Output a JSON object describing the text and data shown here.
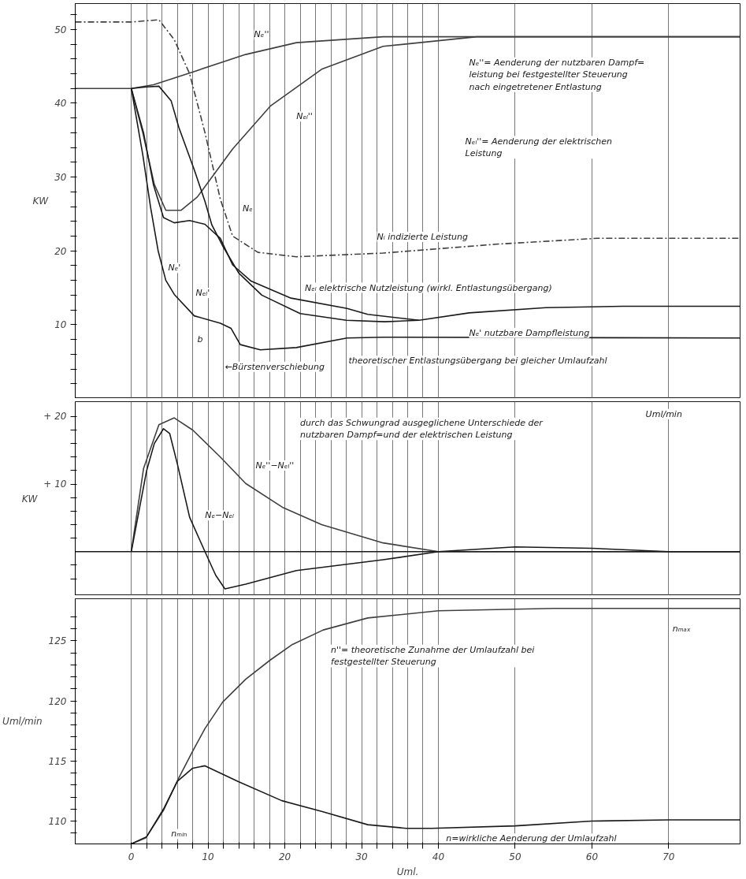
{
  "chart_data": [
    {
      "type": "line",
      "ylabel": "KW",
      "xlim": [
        -7.3,
        79.3
      ],
      "ylim": [
        0,
        53.5
      ],
      "grid": "x",
      "tick_labels": "y",
      "xticks": [
        0,
        {
          "value": 2,
          "label": null
        },
        {
          "value": 4,
          "label": null
        },
        {
          "value": 6,
          "label": null
        },
        {
          "value": 8,
          "label": null
        },
        10,
        {
          "value": 12,
          "label": null
        },
        {
          "value": 14,
          "label": null
        },
        {
          "value": 16,
          "label": null
        },
        {
          "value": 18,
          "label": null
        },
        20,
        {
          "value": 22,
          "label": null
        },
        {
          "value": 24,
          "label": null
        },
        {
          "value": 26,
          "label": null
        },
        {
          "value": 28,
          "label": null
        },
        30,
        {
          "value": 32,
          "label": null
        },
        {
          "value": 34,
          "label": null
        },
        {
          "value": 36,
          "label": null
        },
        {
          "value": 38,
          "label": null
        },
        40,
        50,
        60,
        70
      ],
      "yticks": [
        {
          "value": 2,
          "label": null
        },
        {
          "value": 4,
          "label": null
        },
        {
          "value": 6,
          "label": null
        },
        {
          "value": 8,
          "label": null
        },
        10,
        {
          "value": 12,
          "label": null
        },
        {
          "value": 14,
          "label": null
        },
        {
          "value": 16,
          "label": null
        },
        {
          "value": 18,
          "label": null
        },
        20,
        {
          "value": 22,
          "label": null
        },
        {
          "value": 24,
          "label": null
        },
        {
          "value": 26,
          "label": null
        },
        {
          "value": 28,
          "label": null
        },
        30,
        {
          "value": 32,
          "label": null
        },
        {
          "value": 34,
          "label": null
        },
        {
          "value": 36,
          "label": null
        },
        {
          "value": 38,
          "label": null
        },
        40,
        {
          "value": 42,
          "label": null
        },
        {
          "value": 44,
          "label": null
        },
        {
          "value": 46,
          "label": null
        },
        {
          "value": 48,
          "label": null
        },
        50,
        {
          "value": 52,
          "label": null
        }
      ],
      "series": [
        {
          "color": "#404040",
          "x": [
            -7.3,
            0,
            2.9,
            8.2,
            14.9,
            21.5,
            32.8,
            40,
            79.3
          ],
          "values": [
            42,
            42,
            42.5,
            44.3,
            46.6,
            48.2,
            49,
            49,
            49
          ]
        },
        {
          "color": "#404040",
          "x": [
            0,
            1.5,
            3,
            4.5,
            6.5,
            8.6,
            13.2,
            18.1,
            24.8,
            32.8,
            45,
            79.3
          ],
          "values": [
            42,
            36,
            29,
            25.5,
            25.5,
            27.3,
            33.8,
            39.6,
            44.6,
            47.7,
            49,
            49
          ]
        },
        {
          "color": "#1a1a1a",
          "x": [
            0,
            2,
            3.6,
            5.2,
            6.2,
            8.2,
            9.6,
            10.5,
            12,
            14,
            17,
            22,
            28,
            33,
            37.5
          ],
          "values": [
            42,
            42.2,
            42.3,
            40.3,
            36.7,
            31,
            26.7,
            23.5,
            20.5,
            17,
            14,
            11.5,
            10.6,
            10.4,
            10.6
          ]
        },
        {
          "color": "#1a1a1a",
          "x": [
            0,
            1.6,
            2.9,
            4.2,
            5.6,
            7.6,
            9.6,
            11.6,
            13.2,
            15.6,
            20.8,
            28.1,
            30.8,
            37.5,
            44,
            54,
            64,
            79.3
          ],
          "values": [
            42,
            36,
            28.9,
            24.5,
            23.8,
            24.1,
            23.6,
            21.7,
            18.1,
            15.9,
            13.6,
            12.2,
            11.4,
            10.6,
            11.6,
            12.3,
            12.5,
            12.5
          ]
        },
        {
          "color": "#1a1a1a",
          "x": [
            0,
            1.5,
            2.5,
            3.5,
            4.5,
            5.6,
            8.2,
            11.6,
            13,
            14.2,
            16.8,
            21.5,
            28.1,
            32.8,
            79.3
          ],
          "values": [
            42,
            33,
            26,
            20,
            16,
            14.1,
            11.2,
            10.2,
            9.5,
            7.3,
            6.6,
            6.9,
            8.2,
            8.3,
            8.2
          ]
        },
        {
          "color": "#404040",
          "line_style": "dashed",
          "x": [
            -7.3,
            0,
            3.6,
            5.6,
            7.6,
            9.6,
            11.6,
            13.2,
            16.5,
            21.5,
            32.8,
            47.5,
            60.7,
            79.3
          ],
          "values": [
            51,
            51,
            51.3,
            48.6,
            44,
            36,
            27,
            22,
            19.8,
            19.2,
            19.7,
            20.9,
            21.7,
            21.7
          ]
        }
      ],
      "annotations": [
        "Nₑ''",
        "Nₑₗ''",
        "Nₑ",
        "Nₑ'",
        "Nₑₗ'",
        "b",
        "←Bürstenverschiebung",
        "Nᵢ  indizierte Leistung",
        "Nₑₗ elektrische Nutzleistung (wirkl. Entlastungsübergang)",
        "Nₑ' nutzbare Dampfleistung",
        "theoretischer Entlastungsübergang bei gleicher Umlaufzahl",
        "Nₑ''= Aenderung der nutzbaren Dampf=\n       leistung bei festgestellter Steuerung\n       nach eingetretener Entlastung",
        "Nₑₗ''= Aenderung der elektrischen\n              Leistung"
      ]
    },
    {
      "type": "line",
      "ylabel": "KW",
      "xlim": [
        -7.3,
        79.3
      ],
      "ylim": [
        -6.5,
        22.2
      ],
      "grid": "x",
      "tick_labels": "y",
      "xticks": [
        0,
        {
          "value": 2,
          "label": null
        },
        {
          "value": 4,
          "label": null
        },
        {
          "value": 6,
          "label": null
        },
        {
          "value": 8,
          "label": null
        },
        10,
        {
          "value": 12,
          "label": null
        },
        {
          "value": 14,
          "label": null
        },
        {
          "value": 16,
          "label": null
        },
        {
          "value": 18,
          "label": null
        },
        20,
        {
          "value": 22,
          "label": null
        },
        {
          "value": 24,
          "label": null
        },
        {
          "value": 26,
          "label": null
        },
        {
          "value": 28,
          "label": null
        },
        30,
        {
          "value": 32,
          "label": null
        },
        {
          "value": 34,
          "label": null
        },
        {
          "value": 36,
          "label": null
        },
        {
          "value": 38,
          "label": null
        },
        40,
        50,
        60,
        70
      ],
      "yticks": [
        {
          "value": -4,
          "label": null
        },
        {
          "value": -2,
          "label": null
        },
        {
          "value": 2,
          "label": null
        },
        {
          "value": 4,
          "label": null
        },
        {
          "value": 6,
          "label": null
        },
        {
          "value": 8,
          "label": null
        },
        {
          "value": 10,
          "label": "+ 10"
        },
        {
          "value": 12,
          "label": null
        },
        {
          "value": 14,
          "label": null
        },
        {
          "value": 16,
          "label": null
        },
        {
          "value": 18,
          "label": null
        },
        {
          "value": 20,
          "label": "+ 20"
        }
      ],
      "ref_lines": [
        {
          "axis": "y",
          "value": 0,
          "color": "#1a1a1a"
        }
      ],
      "series": [
        {
          "color": "#404040",
          "x": [
            0,
            1.6,
            3.6,
            5.6,
            8,
            11.6,
            14.9,
            19.8,
            24.8,
            32.8,
            40,
            79.3
          ],
          "values": [
            0,
            12.3,
            18.8,
            19.8,
            18,
            14,
            10.1,
            6.5,
            4,
            1.3,
            0,
            0
          ]
        },
        {
          "color": "#1a1a1a",
          "x": [
            0,
            1,
            2,
            3,
            4.2,
            5,
            6,
            7.6,
            9.6,
            11,
            12.2,
            14.9,
            21.5,
            32.8,
            40,
            50,
            60,
            70,
            79.3
          ],
          "values": [
            0,
            6,
            12,
            16,
            18.2,
            17.5,
            13,
            5.1,
            0,
            -3.5,
            -5.5,
            -4.8,
            -2.8,
            -1.2,
            0,
            0.7,
            0.5,
            0,
            0
          ]
        }
      ],
      "annotations": [
        "Nₑ''−Nₑₗ''",
        "Nₑ−Nₑₗ",
        "Uml/min",
        "durch das Schwungrad  ausgeglichene Unterschiede der\n         nutzbaren Dampf=und der elektrischen Leistung"
      ]
    },
    {
      "type": "line",
      "ylabel": "Uml/min",
      "xlabel": "Uml.",
      "xlim": [
        -7.3,
        79.3
      ],
      "ylim": [
        108.1,
        128.5
      ],
      "grid": "x",
      "xticks": [
        0,
        {
          "value": 2,
          "label": null
        },
        {
          "value": 4,
          "label": null
        },
        {
          "value": 6,
          "label": null
        },
        {
          "value": 8,
          "label": null
        },
        10,
        {
          "value": 12,
          "label": null
        },
        {
          "value": 14,
          "label": null
        },
        {
          "value": 16,
          "label": null
        },
        {
          "value": 18,
          "label": null
        },
        20,
        {
          "value": 22,
          "label": null
        },
        {
          "value": 24,
          "label": null
        },
        {
          "value": 26,
          "label": null
        },
        {
          "value": 28,
          "label": null
        },
        30,
        {
          "value": 32,
          "label": null
        },
        {
          "value": 34,
          "label": null
        },
        {
          "value": 36,
          "label": null
        },
        {
          "value": 38,
          "label": null
        },
        40,
        50,
        60,
        70
      ],
      "yticks": [
        {
          "value": 109,
          "label": null
        },
        110,
        {
          "value": 111,
          "label": null
        },
        {
          "value": 112,
          "label": null
        },
        {
          "value": 113,
          "label": null
        },
        {
          "value": 114,
          "label": null
        },
        115,
        {
          "value": 116,
          "label": null
        },
        {
          "value": 117,
          "label": null
        },
        {
          "value": 118,
          "label": null
        },
        {
          "value": 119,
          "label": null
        },
        120,
        {
          "value": 121,
          "label": null
        },
        {
          "value": 122,
          "label": null
        },
        {
          "value": 123,
          "label": null
        },
        {
          "value": 124,
          "label": null
        },
        125,
        {
          "value": 126,
          "label": null
        },
        {
          "value": 127,
          "label": null
        }
      ],
      "series": [
        {
          "color": "#404040",
          "x": [
            0,
            1.9,
            4.2,
            6.2,
            7.9,
            9.6,
            11.9,
            14.9,
            18.1,
            21,
            25,
            30.8,
            40,
            55,
            79.3
          ],
          "values": [
            108.1,
            108.6,
            110.9,
            113.6,
            115.7,
            117.7,
            119.9,
            121.8,
            123.4,
            124.7,
            125.9,
            126.9,
            127.5,
            127.7,
            127.7
          ]
        },
        {
          "color": "#1a1a1a",
          "x": [
            0,
            2,
            4.2,
            6,
            8,
            9.6,
            13.9,
            19.6,
            24.8,
            30.8,
            35.8,
            39.1,
            50,
            60,
            70,
            79.3
          ],
          "values": [
            108.1,
            108.7,
            111,
            113.3,
            114.4,
            114.6,
            113.3,
            111.7,
            110.8,
            109.7,
            109.4,
            109.4,
            109.6,
            110,
            110.1,
            110.1
          ]
        }
      ],
      "annotations": [
        "n''= theoretische Zunahme der Umlaufzahl bei\n             festgestellter Steuerung",
        "n=wirkliche Aenderung der Umlaufzahl",
        "nₘₐₓ",
        "nₘᵢₙ"
      ]
    }
  ]
}
